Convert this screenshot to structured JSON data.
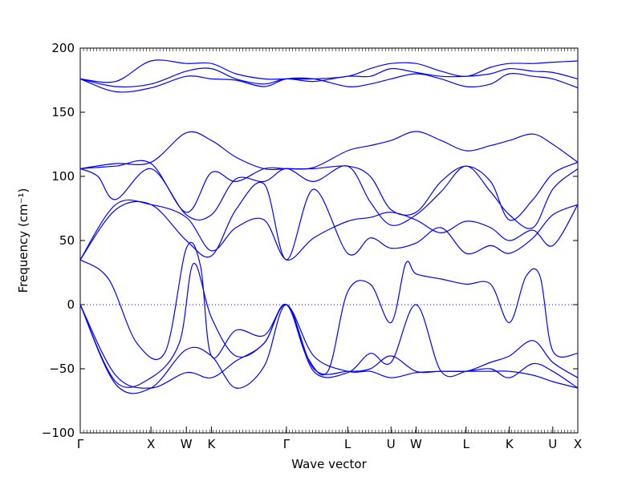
{
  "chart_data": {
    "type": "line",
    "xlabel": "Wave vector",
    "ylabel": "Frequency (cm⁻¹)",
    "ylim": [
      -100,
      200
    ],
    "yticks": [
      -100,
      -50,
      0,
      50,
      100,
      150,
      200
    ],
    "high_symmetry_points": [
      {
        "label": "Γ",
        "x": 0.0
      },
      {
        "label": "X",
        "x": 1.0
      },
      {
        "label": "W",
        "x": 1.5
      },
      {
        "label": "K",
        "x": 1.854
      },
      {
        "label": "Γ",
        "x": 2.914
      },
      {
        "label": "L",
        "x": 3.78
      },
      {
        "label": "U",
        "x": 4.393
      },
      {
        "label": "W",
        "x": 4.747
      },
      {
        "label": "L",
        "x": 5.454
      },
      {
        "label": "K",
        "x": 6.066
      },
      {
        "label": "U",
        "x": 6.679
      },
      {
        "label": "X",
        "x": 7.033
      }
    ],
    "zero_line": true,
    "line_color": "#0000ff",
    "series": [
      {
        "x": [
          0,
          0.5,
          1.0,
          1.5,
          1.854,
          2.2,
          2.6,
          2.914,
          3.3,
          3.78,
          4.1,
          4.393,
          4.747,
          5.1,
          5.454,
          5.8,
          6.066,
          6.4,
          6.679,
          7.033
        ],
        "y": [
          176,
          174,
          190,
          188,
          188,
          180,
          176,
          176,
          176,
          178,
          184,
          188,
          188,
          182,
          178,
          185,
          188,
          188,
          189,
          190
        ]
      },
      {
        "x": [
          0,
          0.5,
          1.0,
          1.5,
          1.854,
          2.2,
          2.6,
          2.914,
          3.3,
          3.78,
          4.1,
          4.393,
          4.747,
          5.1,
          5.454,
          5.8,
          6.066,
          6.4,
          6.679,
          7.033
        ],
        "y": [
          176,
          170,
          172,
          182,
          184,
          176,
          172,
          176,
          174,
          178,
          178,
          184,
          181,
          178,
          178,
          180,
          184,
          182,
          181,
          176
        ]
      },
      {
        "x": [
          0,
          0.5,
          1.0,
          1.5,
          1.854,
          2.2,
          2.6,
          2.914,
          3.3,
          3.78,
          4.1,
          4.393,
          4.747,
          5.1,
          5.454,
          5.8,
          6.066,
          6.4,
          6.679,
          7.033
        ],
        "y": [
          176,
          166,
          169,
          178,
          176,
          175,
          170,
          176,
          176,
          170,
          172,
          176,
          180,
          176,
          170,
          172,
          180,
          178,
          176,
          169
        ]
      },
      {
        "x": [
          0,
          0.5,
          1.0,
          1.5,
          1.854,
          2.2,
          2.6,
          2.914,
          3.3,
          3.78,
          4.1,
          4.393,
          4.747,
          5.1,
          5.454,
          5.8,
          6.066,
          6.4,
          6.679,
          7.033
        ],
        "y": [
          106,
          110,
          111,
          134,
          128,
          115,
          106,
          106,
          107,
          120,
          124,
          128,
          135,
          128,
          120,
          124,
          128,
          133,
          125,
          111
        ]
      },
      {
        "x": [
          0,
          0.5,
          1.0,
          1.5,
          1.854,
          2.2,
          2.6,
          2.914,
          3.3,
          3.78,
          4.1,
          4.393,
          4.747,
          5.1,
          5.454,
          5.8,
          6.066,
          6.4,
          6.679,
          7.033
        ],
        "y": [
          106,
          108,
          110,
          72,
          103,
          96,
          106,
          106,
          106,
          108,
          100,
          74,
          72,
          96,
          108,
          96,
          66,
          82,
          102,
          111
        ]
      },
      {
        "x": [
          0,
          0.25,
          0.5,
          1.0,
          1.5,
          1.854,
          2.2,
          2.6,
          2.914,
          3.3,
          3.78,
          4.1,
          4.393,
          4.747,
          5.1,
          5.454,
          5.8,
          6.066,
          6.4,
          6.679,
          7.033
        ],
        "y": [
          106,
          100,
          82,
          106,
          70,
          70,
          98,
          96,
          106,
          96,
          108,
          80,
          62,
          70,
          88,
          108,
          88,
          70,
          60,
          90,
          106
        ]
      },
      {
        "x": [
          0,
          0.5,
          1.0,
          1.5,
          1.854,
          2.2,
          2.6,
          2.914,
          3.3,
          3.78,
          4.1,
          4.393,
          4.747,
          5.1,
          5.454,
          5.8,
          6.066,
          6.4,
          6.679,
          7.033
        ],
        "y": [
          35,
          78,
          78,
          68,
          42,
          60,
          66,
          35,
          52,
          65,
          68,
          72,
          66,
          56,
          65,
          60,
          50,
          58,
          46,
          78
        ]
      },
      {
        "x": [
          0,
          0.5,
          1.0,
          1.5,
          1.854,
          2.2,
          2.6,
          2.914,
          3.3,
          3.78,
          4.1,
          4.393,
          4.747,
          5.1,
          5.454,
          5.8,
          6.066,
          6.4,
          6.679,
          7.033
        ],
        "y": [
          35,
          74,
          78,
          50,
          38,
          74,
          94,
          35,
          90,
          40,
          52,
          44,
          48,
          60,
          40,
          46,
          40,
          52,
          70,
          78
        ]
      },
      {
        "x": [
          0,
          0.4,
          0.8,
          1.2,
          1.5,
          1.7,
          1.854,
          2.2,
          2.6,
          2.914,
          3.2,
          3.5,
          3.78,
          4.1,
          4.393,
          4.6,
          4.747,
          5.1,
          5.454,
          5.8,
          6.066,
          6.3,
          6.5,
          6.679,
          7.033
        ],
        "y": [
          35,
          20,
          -30,
          -37,
          44,
          30,
          -40,
          -20,
          -24,
          0,
          -40,
          -52,
          10,
          16,
          -14,
          32,
          24,
          20,
          16,
          16,
          -14,
          22,
          22,
          -36,
          -38
        ]
      },
      {
        "x": [
          0,
          0.5,
          1.0,
          1.4,
          1.6,
          1.854,
          2.2,
          2.6,
          2.914,
          3.3,
          3.78,
          4.1,
          4.393,
          4.747,
          5.1,
          5.454,
          5.8,
          6.066,
          6.4,
          6.679,
          7.033
        ],
        "y": [
          0,
          -60,
          -57,
          -30,
          32,
          -10,
          -40,
          -30,
          0,
          -52,
          -53,
          -38,
          -45,
          0,
          -52,
          -52,
          -45,
          -40,
          -28,
          -45,
          -57
        ]
      },
      {
        "x": [
          0,
          0.5,
          1.0,
          1.5,
          1.854,
          2.2,
          2.6,
          2.914,
          3.3,
          3.78,
          4.1,
          4.393,
          4.747,
          5.1,
          5.454,
          5.8,
          6.066,
          6.4,
          6.679,
          7.033
        ],
        "y": [
          0,
          -55,
          -65,
          -53,
          -57,
          -44,
          -30,
          0,
          -40,
          -52,
          -52,
          -57,
          -53,
          -52,
          -52,
          -50,
          -57,
          -46,
          -52,
          -65
        ]
      },
      {
        "x": [
          0,
          0.5,
          1.0,
          1.5,
          1.854,
          2.2,
          2.6,
          2.914,
          3.3,
          3.78,
          4.1,
          4.393,
          4.747,
          5.1,
          5.454,
          5.8,
          6.066,
          6.4,
          6.679,
          7.033
        ],
        "y": [
          0,
          -62,
          -65,
          -35,
          -40,
          -65,
          -48,
          0,
          -50,
          -52,
          -50,
          -40,
          -52,
          -52,
          -52,
          -52,
          -52,
          -55,
          -60,
          -65
        ]
      }
    ]
  }
}
